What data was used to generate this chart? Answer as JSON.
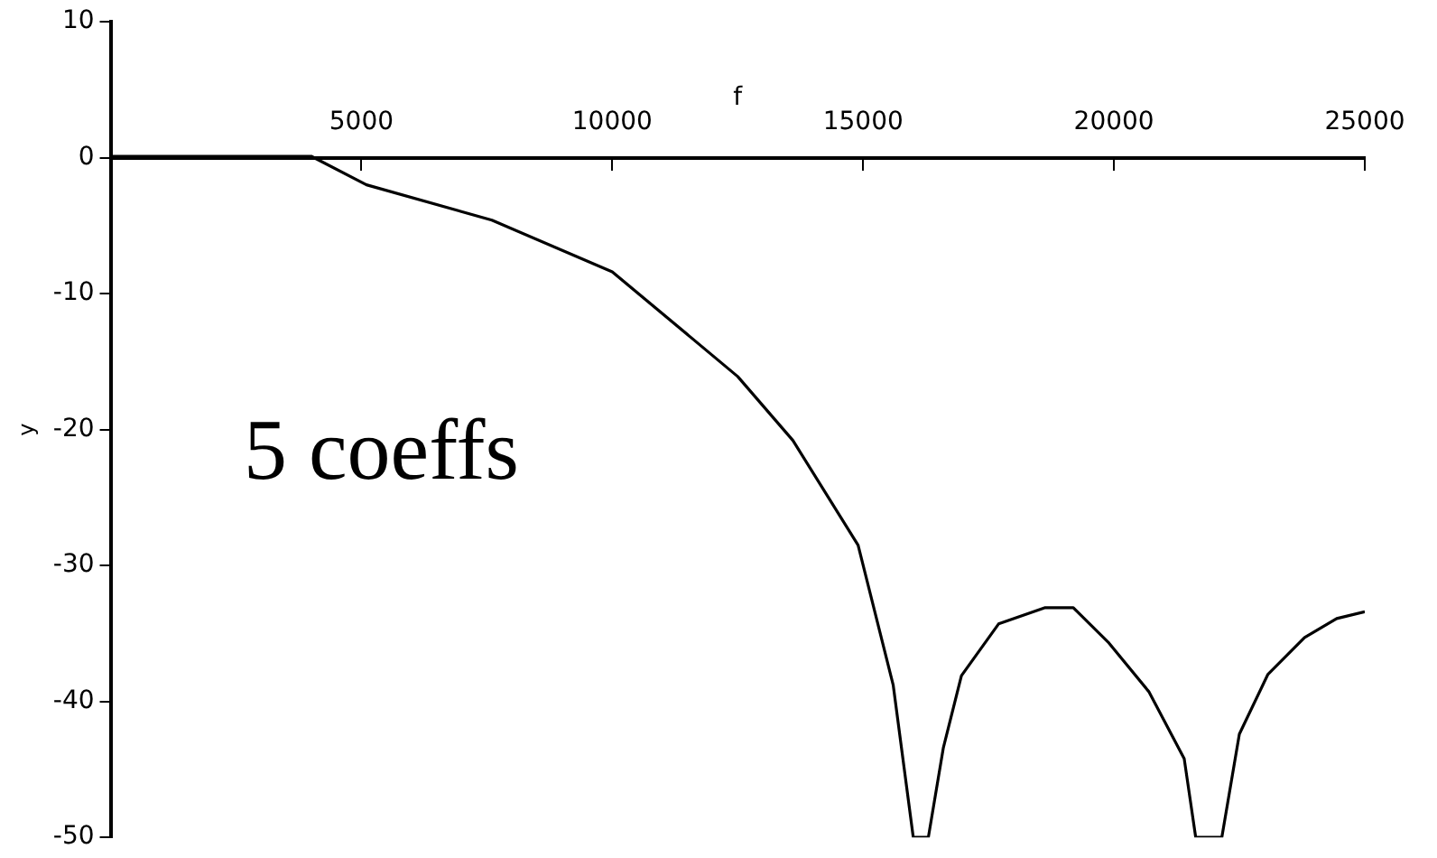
{
  "chart_data": {
    "type": "line",
    "xlabel": "f",
    "ylabel": "y",
    "annotations": [
      "5 coeffs"
    ],
    "x": [
      0,
      4000,
      5100,
      7600,
      10000,
      12500,
      13600,
      14900,
      15600,
      16000,
      16300,
      16600,
      16960,
      17700,
      18630,
      19190,
      19900,
      20700,
      21400,
      21630,
      22150,
      22500,
      23070,
      23800,
      24440,
      25000
    ],
    "series": [
      {
        "color": "#000000",
        "values": [
          0.1,
          0.1,
          -2.0,
          -4.6,
          -8.4,
          -16.1,
          -20.8,
          -28.5,
          -38.8,
          -50,
          -50,
          -43.4,
          -38.1,
          -34.3,
          -33.1,
          -33.1,
          -35.7,
          -39.3,
          -44.2,
          -50,
          -50,
          -42.4,
          -38.0,
          -35.3,
          -33.9,
          -33.4
        ]
      }
    ],
    "xlim": [
      0,
      25000
    ],
    "xticks": [
      5000,
      10000,
      15000,
      20000,
      25000
    ],
    "ylim": [
      -50,
      10
    ],
    "yticks": [
      10,
      0,
      -10,
      -20,
      -30,
      -40,
      -50
    ],
    "grid": false,
    "legend": false,
    "marker": "none",
    "line_style": "solid"
  }
}
